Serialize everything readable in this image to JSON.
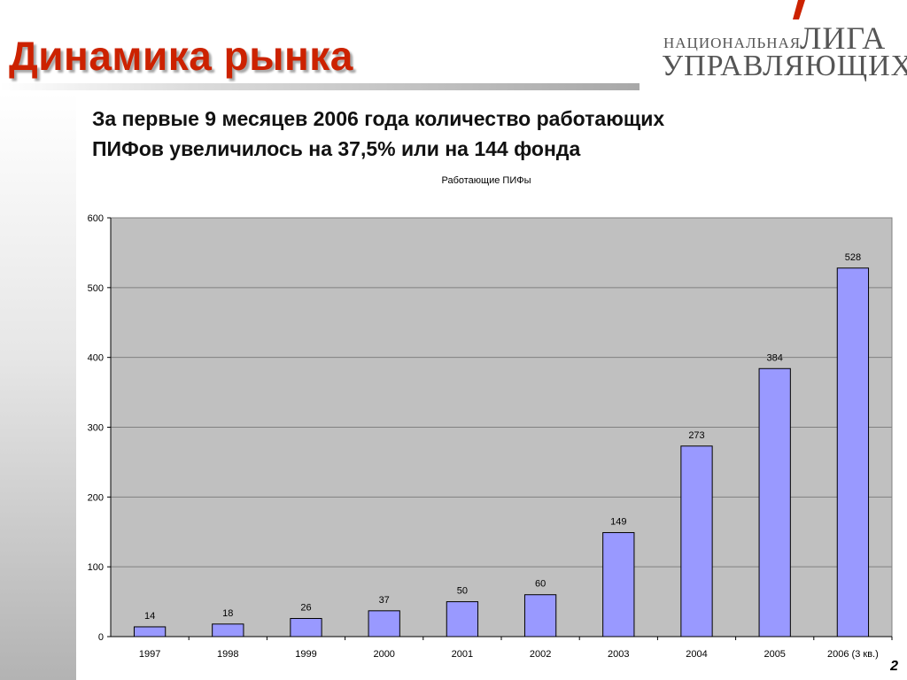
{
  "slide": {
    "title": "Динамика рынка",
    "subtitle_line1": "За первые 9 месяцев 2006 года количество работающих",
    "subtitle_line2": "ПИФов увеличилось на 37,5% или на 144 фонда",
    "page_number": "2"
  },
  "logo": {
    "small_text": "НАЦИОНАЛЬНАЯ",
    "big_text_1": "ЛИГА",
    "big_text_2": "УПРАВЛЯЮЩИХ",
    "accent_color": "#cc2200"
  },
  "colors": {
    "title": "#cc2200",
    "plot_bg": "#c0c0c0",
    "bar_fill": "#9999ff",
    "bar_stroke": "#000000",
    "grid": "#808080"
  },
  "chart_data": {
    "type": "bar",
    "title": "Работающие ПИФы",
    "categories": [
      "1997",
      "1998",
      "1999",
      "2000",
      "2001",
      "2002",
      "2003",
      "2004",
      "2005",
      "2006 (3 кв.)"
    ],
    "values": [
      14,
      18,
      26,
      37,
      50,
      60,
      149,
      273,
      384,
      528
    ],
    "ylim": [
      0,
      600
    ],
    "yticks": [
      0,
      100,
      200,
      300,
      400,
      500,
      600
    ],
    "grid": true,
    "legend": "none"
  }
}
